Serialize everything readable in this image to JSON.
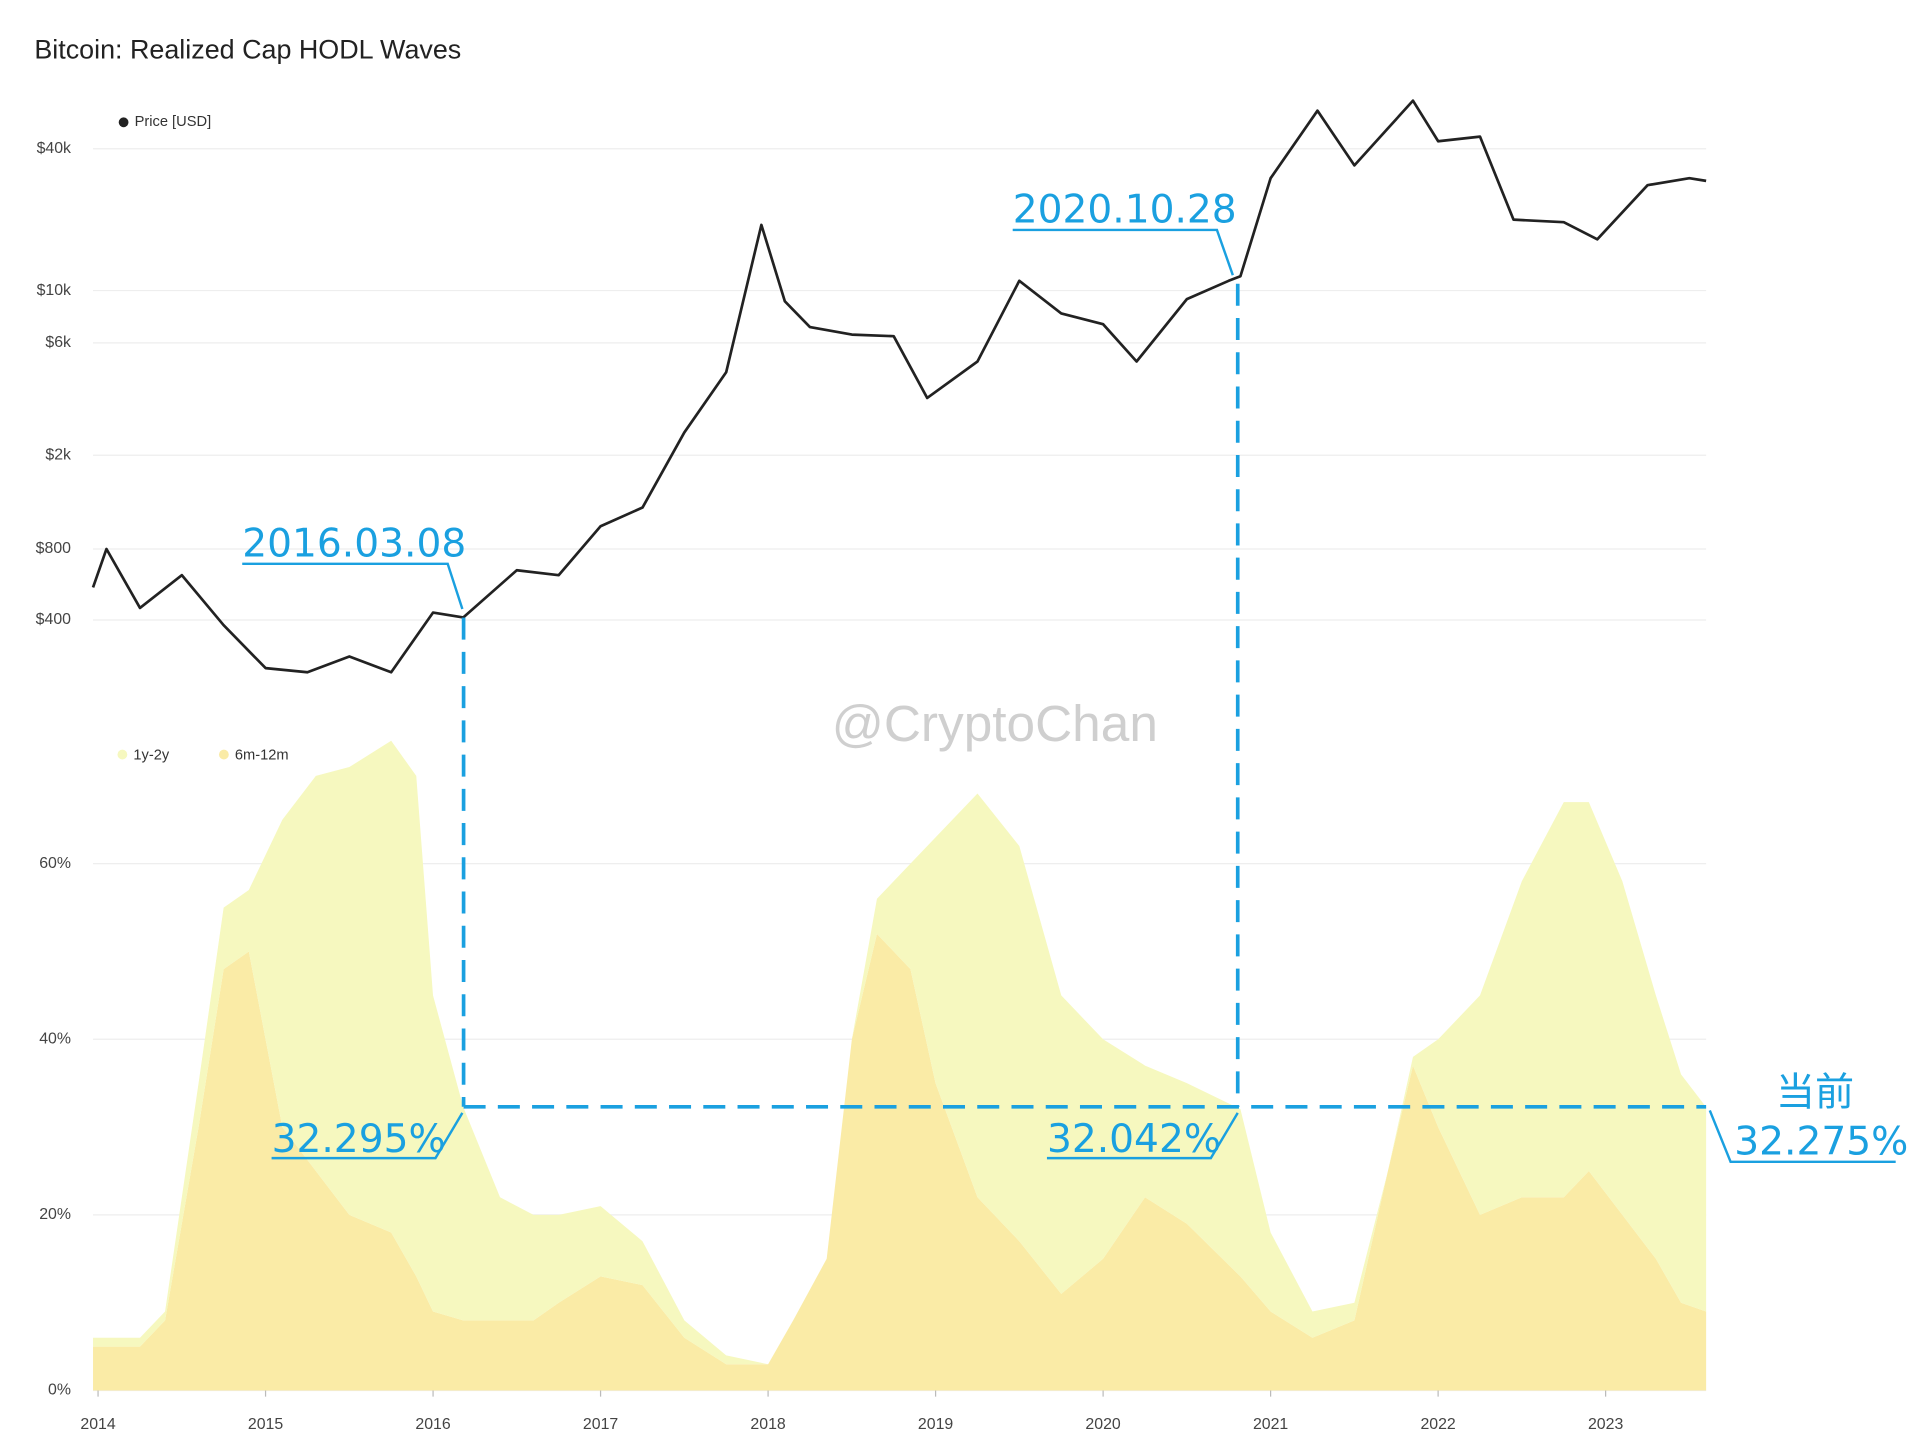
{
  "chart_data": [
    {
      "type": "line",
      "title": "Bitcoin: Realized Cap HODL Waves",
      "yscale": "log",
      "grid": true,
      "xlim": [
        2013.97,
        2023.6
      ],
      "ylim": [
        150,
        75000
      ],
      "yticks": [
        {
          "value": 400,
          "label": "$400"
        },
        {
          "value": 800,
          "label": "$800"
        },
        {
          "value": 2000,
          "label": "$2k"
        },
        {
          "value": 6000,
          "label": "$6k"
        },
        {
          "value": 10000,
          "label": "$10k"
        },
        {
          "value": 40000,
          "label": "$40k"
        }
      ],
      "x": [
        2013.97,
        2014.05,
        2014.25,
        2014.5,
        2014.75,
        2015.0,
        2015.25,
        2015.5,
        2015.75,
        2016.0,
        2016.18,
        2016.5,
        2016.75,
        2017.0,
        2017.25,
        2017.5,
        2017.75,
        2017.96,
        2018.1,
        2018.25,
        2018.5,
        2018.75,
        2018.95,
        2019.25,
        2019.5,
        2019.75,
        2020.0,
        2020.2,
        2020.5,
        2020.75,
        2020.82,
        2021.0,
        2021.28,
        2021.5,
        2021.85,
        2022.0,
        2022.25,
        2022.45,
        2022.75,
        2022.95,
        2023.25,
        2023.5,
        2023.6
      ],
      "series": [
        {
          "name": "Price [USD]",
          "color": "#222222",
          "values": [
            550,
            800,
            450,
            620,
            380,
            250,
            240,
            280,
            240,
            430,
            410,
            650,
            620,
            1000,
            1200,
            2500,
            4500,
            19000,
            9000,
            7000,
            6500,
            6400,
            3500,
            5000,
            11000,
            8000,
            7200,
            5000,
            9200,
            11000,
            11500,
            30000,
            58000,
            34000,
            64000,
            43000,
            45000,
            20000,
            19500,
            16500,
            28000,
            30000,
            29200
          ]
        }
      ]
    },
    {
      "type": "area",
      "stacked": true,
      "grid": true,
      "xlim": [
        2013.97,
        2023.6
      ],
      "ylim": [
        0,
        75
      ],
      "xticks": [
        2014,
        2015,
        2016,
        2017,
        2018,
        2019,
        2020,
        2021,
        2022,
        2023
      ],
      "yticks": [
        {
          "value": 0,
          "label": "0%"
        },
        {
          "value": 20,
          "label": "20%"
        },
        {
          "value": 40,
          "label": "40%"
        },
        {
          "value": 60,
          "label": "60%"
        }
      ],
      "x": [
        2013.97,
        2014.25,
        2014.4,
        2014.6,
        2014.75,
        2014.9,
        2015.1,
        2015.3,
        2015.5,
        2015.75,
        2015.9,
        2016.0,
        2016.18,
        2016.4,
        2016.6,
        2016.75,
        2017.0,
        2017.25,
        2017.5,
        2017.75,
        2018.0,
        2018.15,
        2018.35,
        2018.5,
        2018.65,
        2018.85,
        2019.0,
        2019.25,
        2019.5,
        2019.75,
        2020.0,
        2020.25,
        2020.5,
        2020.82,
        2021.0,
        2021.25,
        2021.5,
        2021.7,
        2021.85,
        2022.0,
        2022.25,
        2022.5,
        2022.75,
        2022.9,
        2023.1,
        2023.3,
        2023.45,
        2023.6
      ],
      "series": [
        {
          "name": "6m-12m",
          "color": "#faeba6",
          "values": [
            5,
            5,
            8,
            30,
            48,
            50,
            30,
            25,
            20,
            18,
            13,
            9,
            8,
            8,
            8,
            10,
            13,
            12,
            6,
            3,
            3,
            8,
            15,
            40,
            52,
            48,
            35,
            22,
            17,
            11,
            15,
            22,
            19,
            13,
            9,
            6,
            8,
            25,
            37,
            30,
            20,
            22,
            22,
            25,
            20,
            15,
            10,
            9
          ]
        },
        {
          "name": "1y-2y",
          "color": "#f6f8bf",
          "values": [
            1,
            1,
            1,
            5,
            7,
            7,
            35,
            45,
            51,
            56,
            57,
            36,
            24.295,
            14,
            12,
            10,
            8,
            5,
            2,
            1,
            0,
            0,
            0,
            0,
            4,
            12,
            28,
            46,
            45,
            34,
            25,
            15,
            16,
            19.042,
            9,
            3,
            2,
            0,
            1,
            10,
            25,
            36,
            45,
            42,
            38,
            30,
            26,
            23.275
          ]
        }
      ]
    }
  ],
  "annotations": [
    "2016.03.08",
    "2020.10.28",
    "32.295%",
    "32.042%",
    "当前",
    "32.275%"
  ],
  "watermark": "@CryptoChan"
}
